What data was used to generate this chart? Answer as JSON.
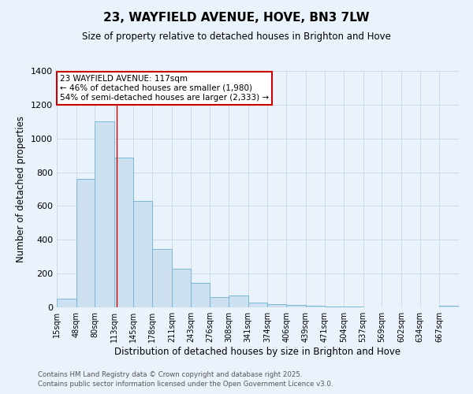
{
  "title": "23, WAYFIELD AVENUE, HOVE, BN3 7LW",
  "subtitle": "Size of property relative to detached houses in Brighton and Hove",
  "xlabel": "Distribution of detached houses by size in Brighton and Hove",
  "ylabel": "Number of detached properties",
  "footnote1": "Contains HM Land Registry data © Crown copyright and database right 2025.",
  "footnote2": "Contains public sector information licensed under the Open Government Licence v3.0.",
  "annotation_line1": "23 WAYFIELD AVENUE: 117sqm",
  "annotation_line2": "← 46% of detached houses are smaller (1,980)",
  "annotation_line3": "54% of semi-detached houses are larger (2,333) →",
  "property_size": 117,
  "bar_color": "#cce0f0",
  "bar_edge_color": "#7ab8d8",
  "line_color": "#cc0000",
  "annotation_box_color": "#ffffff",
  "annotation_box_edge": "#cc0000",
  "grid_color": "#c8d8e8",
  "background_color": "#eaf3fb",
  "categories": [
    "15sqm",
    "48sqm",
    "80sqm",
    "113sqm",
    "145sqm",
    "178sqm",
    "211sqm",
    "243sqm",
    "276sqm",
    "308sqm",
    "341sqm",
    "374sqm",
    "406sqm",
    "439sqm",
    "471sqm",
    "504sqm",
    "537sqm",
    "569sqm",
    "602sqm",
    "634sqm",
    "667sqm"
  ],
  "values": [
    50,
    760,
    1100,
    885,
    630,
    345,
    230,
    145,
    60,
    70,
    30,
    20,
    15,
    10,
    5,
    5,
    2,
    2,
    1,
    2,
    10
  ],
  "bin_edges": [
    15,
    48,
    80,
    113,
    145,
    178,
    211,
    243,
    276,
    308,
    341,
    374,
    406,
    439,
    471,
    504,
    537,
    569,
    602,
    634,
    667,
    700
  ],
  "ylim": [
    0,
    1400
  ],
  "xlim": [
    15,
    700
  ],
  "yticks": [
    0,
    200,
    400,
    600,
    800,
    1000,
    1200,
    1400
  ]
}
